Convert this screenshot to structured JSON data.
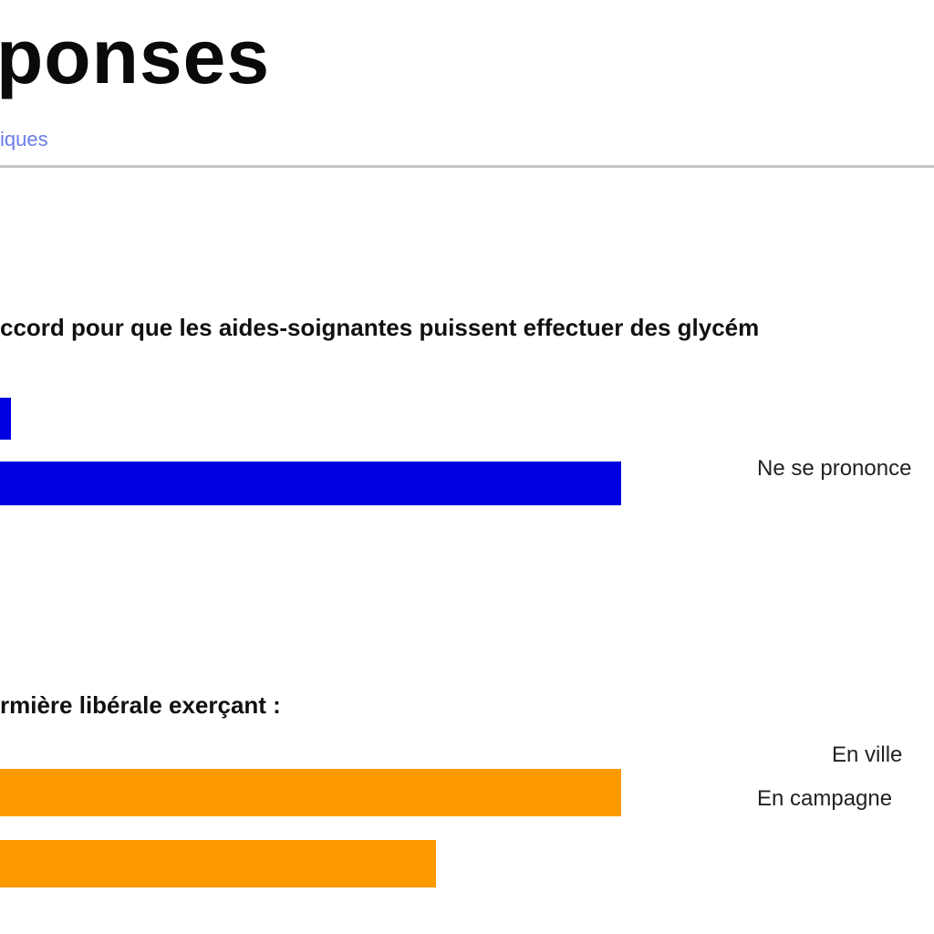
{
  "header": {
    "title": "ponses",
    "tab_label": "iques"
  },
  "questions": [
    {
      "text": "ccord pour que les aides-soignantes puissent effectuer des glycém",
      "color": "#0000e0",
      "bars": [
        {
          "value": 0.012
        },
        {
          "value": 0.665
        }
      ],
      "legend": [
        "Ne se prononce"
      ]
    },
    {
      "text": "rmière libérale exerçant :",
      "color": "#ff9900",
      "bars": [
        {
          "value": 0.665
        },
        {
          "value": 0.467
        }
      ],
      "legend": [
        "En ville",
        "En campagne"
      ]
    }
  ]
}
